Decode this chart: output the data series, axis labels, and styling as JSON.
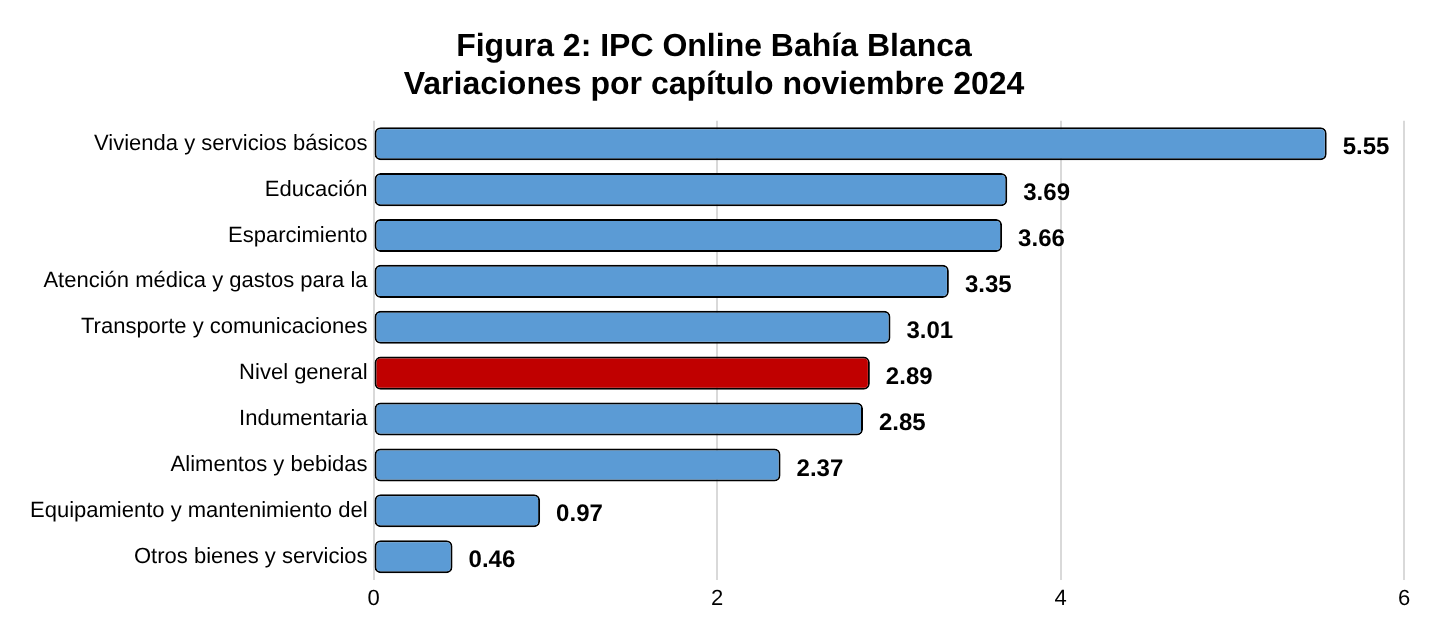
{
  "chart_data": {
    "type": "bar",
    "orientation": "horizontal",
    "title": [
      "Figura 2: IPC Online Bahía Blanca",
      "Variaciones por capítulo noviembre 2024"
    ],
    "categories": [
      "Vivienda y servicios básicos",
      "Educación",
      "Esparcimiento",
      "Atención médica y gastos para la",
      "Transporte y comunicaciones",
      "Nivel general",
      "Indumentaria",
      "Alimentos y bebidas",
      "Equipamiento y mantenimiento del",
      "Otros bienes y servicios"
    ],
    "values": [
      5.55,
      3.69,
      3.66,
      3.35,
      3.01,
      2.89,
      2.85,
      2.37,
      0.97,
      0.46
    ],
    "colors": [
      "#5b9bd5",
      "#5b9bd5",
      "#5b9bd5",
      "#5b9bd5",
      "#5b9bd5",
      "#c00000",
      "#5b9bd5",
      "#5b9bd5",
      "#5b9bd5",
      "#5b9bd5"
    ],
    "xlim": [
      0,
      6
    ],
    "xticks": [
      0,
      2,
      4,
      6
    ],
    "grid": "x",
    "data_labels": true,
    "legend": false
  }
}
